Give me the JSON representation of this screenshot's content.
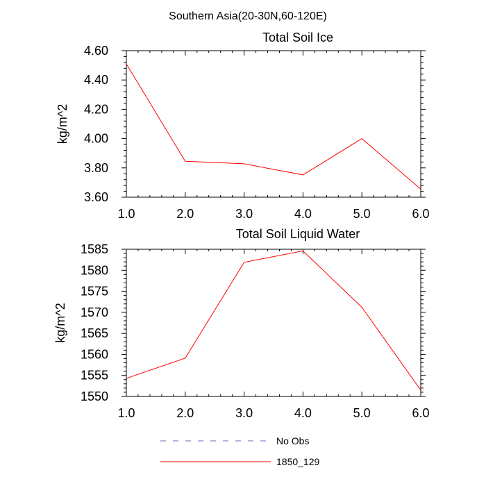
{
  "figure": {
    "suptitle": "Southern Asia(20-30N,60-120E)"
  },
  "chart_data": [
    {
      "type": "line",
      "title": "Total Soil Ice",
      "xlabel": "",
      "ylabel": "kg/m^2",
      "x": [
        1,
        2,
        3,
        4,
        5,
        6
      ],
      "xlim": [
        1,
        6
      ],
      "ylim": [
        3.6,
        4.6
      ],
      "xticks": [
        1,
        2,
        3,
        4,
        5,
        6
      ],
      "xtick_labels": [
        "1.0",
        "2.0",
        "3.0",
        "4.0",
        "5.0",
        "6.0"
      ],
      "yticks": [
        3.6,
        3.8,
        4.0,
        4.2,
        4.4,
        4.6
      ],
      "ytick_labels": [
        "3.60",
        "3.80",
        "4.00",
        "4.20",
        "4.40",
        "4.60"
      ],
      "grid": false,
      "series": [
        {
          "name": "1850_129",
          "color": "#ff0000",
          "dash": "solid",
          "values": [
            4.51,
            3.845,
            3.828,
            3.752,
            4.0,
            3.655
          ]
        }
      ]
    },
    {
      "type": "line",
      "title": "Total Soil Liquid Water",
      "xlabel": "",
      "ylabel": "kg/m^2",
      "x": [
        1,
        2,
        3,
        4,
        5,
        6
      ],
      "xlim": [
        1,
        6
      ],
      "ylim": [
        1550,
        1585
      ],
      "xticks": [
        1,
        2,
        3,
        4,
        5,
        6
      ],
      "xtick_labels": [
        "1.0",
        "2.0",
        "3.0",
        "4.0",
        "5.0",
        "6.0"
      ],
      "yticks": [
        1550,
        1555,
        1560,
        1565,
        1570,
        1575,
        1580,
        1585
      ],
      "ytick_labels": [
        "1550",
        "1555",
        "1560",
        "1565",
        "1570",
        "1575",
        "1580",
        "1585"
      ],
      "grid": false,
      "series": [
        {
          "name": "1850_129",
          "color": "#ff0000",
          "dash": "solid",
          "values": [
            1554.3,
            1559.1,
            1581.9,
            1584.6,
            1571.2,
            1551.5
          ]
        }
      ]
    }
  ],
  "legend": {
    "placement": "bottom-center",
    "entries": [
      {
        "label": "No Obs",
        "color": "#6b6bbd",
        "dash": "dashed"
      },
      {
        "label": "1850_129",
        "color": "#ff0000",
        "dash": "solid"
      }
    ]
  }
}
